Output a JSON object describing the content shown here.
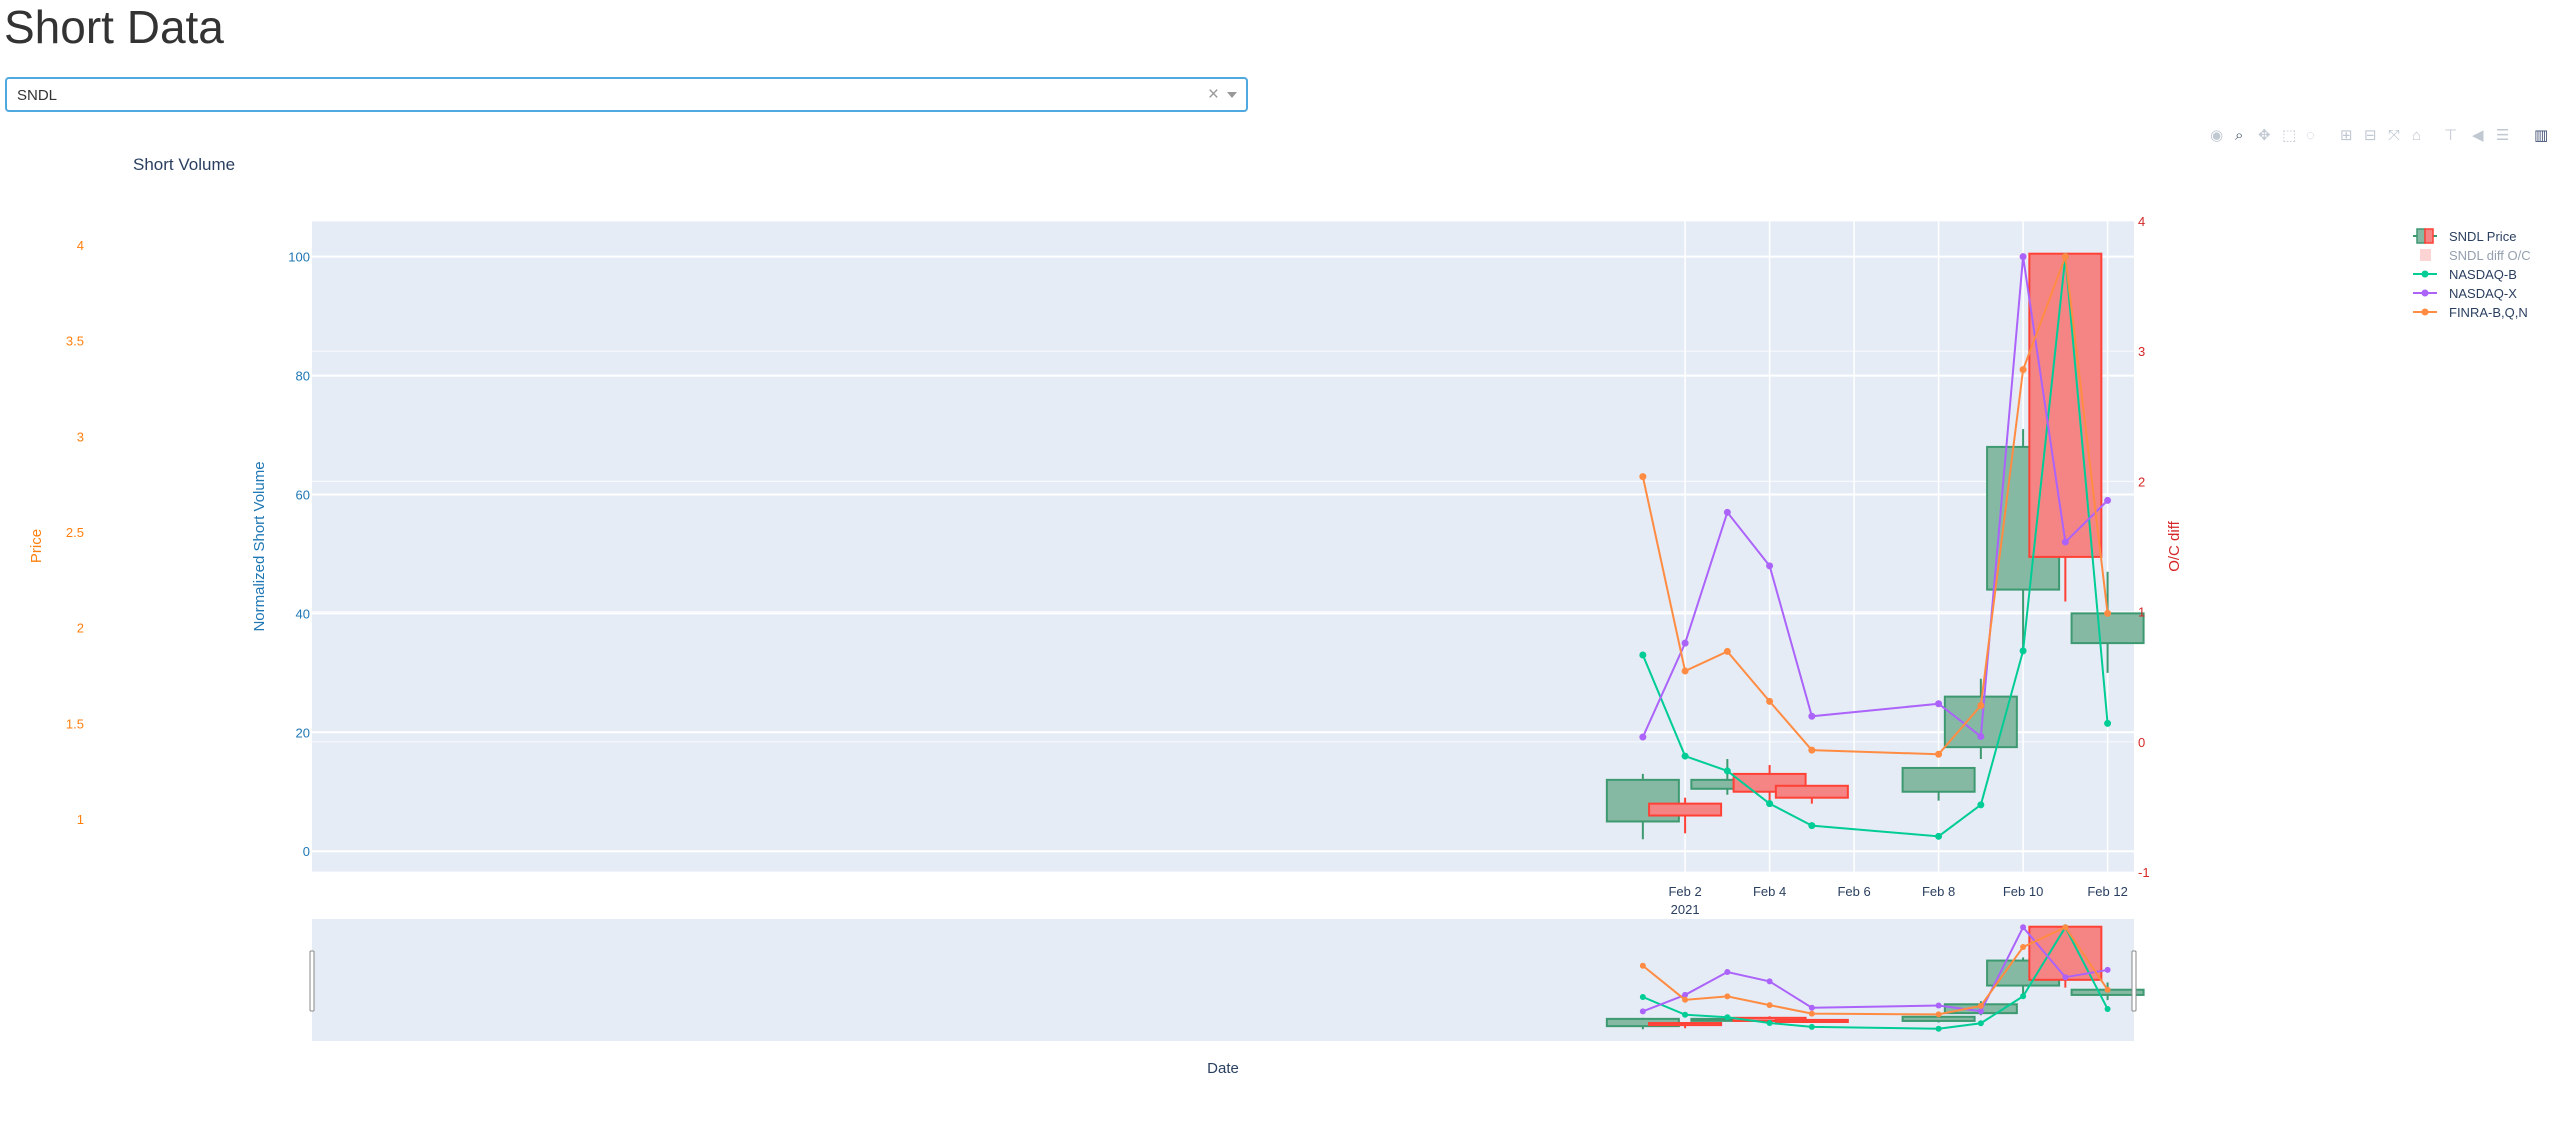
{
  "page": {
    "title": "Short Data"
  },
  "ticker_select": {
    "value": "SNDL",
    "clear_symbol": "×"
  },
  "modebar": {
    "icons": [
      "camera-icon",
      "zoom-icon",
      "pan-icon",
      "box-select-icon",
      "lasso-select-icon",
      "zoom-in-icon",
      "zoom-out-icon",
      "autoscale-icon",
      "reset-axes-icon",
      "spike-lines-icon",
      "hover-closest-icon",
      "hover-compare-icon",
      "plotly-logo-icon"
    ]
  },
  "chart_data": {
    "type": "candlestick+line",
    "title": "Short Volume",
    "xlabel": "Date",
    "x_ticks": [
      {
        "date": "2021-02-02",
        "label": "Feb 2",
        "sublabel": "2021"
      },
      {
        "date": "2021-02-04",
        "label": "Feb 4",
        "sublabel": ""
      },
      {
        "date": "2021-02-06",
        "label": "Feb 6",
        "sublabel": ""
      },
      {
        "date": "2021-02-08",
        "label": "Feb 8",
        "sublabel": ""
      },
      {
        "date": "2021-02-10",
        "label": "Feb 10",
        "sublabel": ""
      },
      {
        "date": "2021-02-12",
        "label": "Feb 12",
        "sublabel": ""
      }
    ],
    "x_range": [
      "2020-12-31T12:00",
      "2021-02-12T15:00"
    ],
    "y_axes": {
      "volume": {
        "label": "Normalized Short Volume",
        "range": [
          -3.5,
          106
        ],
        "ticks": [
          0,
          20,
          40,
          60,
          80,
          100
        ],
        "color": "#1f77b4"
      },
      "price": {
        "label": "Price",
        "ticks": [
          1,
          1.5,
          2,
          2.5,
          3,
          3.5,
          4
        ],
        "color": "#ff7f0e"
      },
      "oc_diff": {
        "label": "O/C diff",
        "range": [
          -1,
          4
        ],
        "ticks": [
          -1,
          0,
          1,
          2,
          3,
          4
        ],
        "color": "#d62728"
      }
    },
    "legend": {
      "placement": "top-right",
      "entries": [
        {
          "name": "SNDL Price",
          "kind": "candle"
        },
        {
          "name": "SNDL diff O/C",
          "kind": "bar",
          "hidden": true
        },
        {
          "name": "NASDAQ-B",
          "kind": "line",
          "color": "#00cc96"
        },
        {
          "name": "NASDAQ-X",
          "kind": "line",
          "color": "#ab63fa"
        },
        {
          "name": "FINRA-B,Q,N",
          "kind": "line",
          "color": "#ff8c42"
        }
      ]
    },
    "candle_colors": {
      "increasing": "#3d9970",
      "increasing_fill": "#85b9a3",
      "decreasing": "#ff4136",
      "decreasing_fill": "#f58585"
    },
    "candles": [
      {
        "date": "2021-02-01",
        "open": 5,
        "close": 12,
        "low": 2,
        "high": 13,
        "dir": "up"
      },
      {
        "date": "2021-02-02",
        "open": 8,
        "close": 6,
        "low": 3,
        "high": 9,
        "dir": "down"
      },
      {
        "date": "2021-02-03",
        "open": 10.5,
        "close": 12,
        "low": 9.5,
        "high": 15.5,
        "dir": "up"
      },
      {
        "date": "2021-02-04",
        "open": 13,
        "close": 10,
        "low": 8.5,
        "high": 14.5,
        "dir": "down"
      },
      {
        "date": "2021-02-05",
        "open": 11,
        "close": 9,
        "low": 8,
        "high": 11,
        "dir": "down"
      },
      {
        "date": "2021-02-08",
        "open": 10,
        "close": 14,
        "low": 8.5,
        "high": 14,
        "dir": "up"
      },
      {
        "date": "2021-02-09",
        "open": 17.5,
        "close": 26,
        "low": 15.5,
        "high": 29,
        "dir": "up"
      },
      {
        "date": "2021-02-10",
        "open": 44,
        "close": 68,
        "low": 34,
        "high": 71,
        "dir": "up"
      },
      {
        "date": "2021-02-11",
        "open": 100.5,
        "close": 49.5,
        "low": 42,
        "high": 100.5,
        "dir": "down"
      },
      {
        "date": "2021-02-12",
        "open": 35,
        "close": 40,
        "low": 30,
        "high": 47,
        "dir": "up"
      }
    ],
    "series": [
      {
        "name": "NASDAQ-B",
        "color": "#00cc96",
        "points": [
          {
            "date": "2021-02-01",
            "y": 33
          },
          {
            "date": "2021-02-02",
            "y": 16
          },
          {
            "date": "2021-02-03",
            "y": 13.5
          },
          {
            "date": "2021-02-04",
            "y": 8
          },
          {
            "date": "2021-02-05",
            "y": 4.3
          },
          {
            "date": "2021-02-08",
            "y": 2.5
          },
          {
            "date": "2021-02-09",
            "y": 7.8
          },
          {
            "date": "2021-02-10",
            "y": 33.7
          },
          {
            "date": "2021-02-11",
            "y": 100
          },
          {
            "date": "2021-02-12",
            "y": 21.5
          }
        ]
      },
      {
        "name": "NASDAQ-X",
        "color": "#ab63fa",
        "points": [
          {
            "date": "2021-02-01",
            "y": 19.2
          },
          {
            "date": "2021-02-02",
            "y": 35
          },
          {
            "date": "2021-02-03",
            "y": 57
          },
          {
            "date": "2021-02-04",
            "y": 48
          },
          {
            "date": "2021-02-05",
            "y": 22.7
          },
          {
            "date": "2021-02-08",
            "y": 24.8
          },
          {
            "date": "2021-02-09",
            "y": 19.3
          },
          {
            "date": "2021-02-10",
            "y": 100
          },
          {
            "date": "2021-02-11",
            "y": 52
          },
          {
            "date": "2021-02-12",
            "y": 59
          }
        ]
      },
      {
        "name": "FINRA-B,Q,N",
        "color": "#ff8c42",
        "points": [
          {
            "date": "2021-02-01",
            "y": 63
          },
          {
            "date": "2021-02-02",
            "y": 30.3
          },
          {
            "date": "2021-02-03",
            "y": 33.6
          },
          {
            "date": "2021-02-04",
            "y": 25.2
          },
          {
            "date": "2021-02-05",
            "y": 17
          },
          {
            "date": "2021-02-08",
            "y": 16.3
          },
          {
            "date": "2021-02-09",
            "y": 24.5
          },
          {
            "date": "2021-02-10",
            "y": 81
          },
          {
            "date": "2021-02-11",
            "y": 100
          },
          {
            "date": "2021-02-12",
            "y": 40
          }
        ]
      }
    ],
    "grid": true,
    "rangeslider": true
  }
}
